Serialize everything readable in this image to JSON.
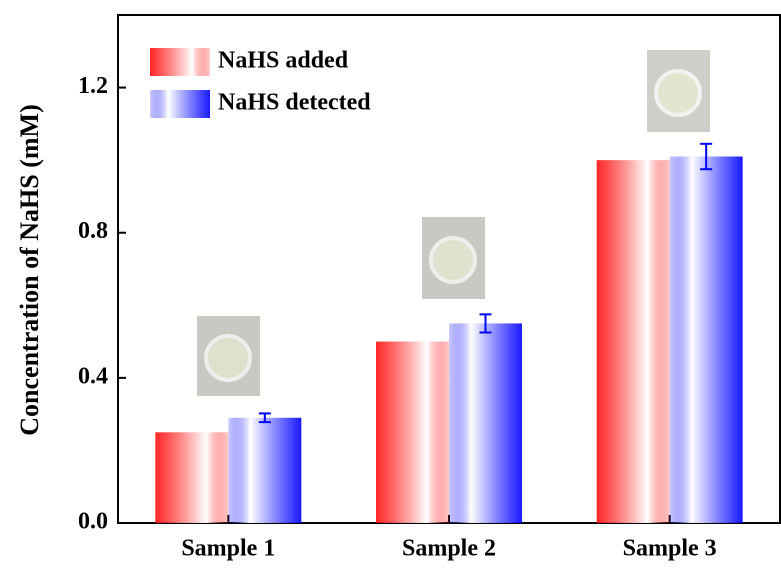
{
  "chart_data": {
    "type": "bar",
    "ylabel": "Concentration of NaHS (mM)",
    "categories": [
      "Sample 1",
      "Sample 2",
      "Sample 3"
    ],
    "series": [
      {
        "name": "NaHS added",
        "color": "#ff0000",
        "values": [
          0.25,
          0.5,
          1.0
        ]
      },
      {
        "name": "NaHS detected",
        "color": "#0000ff",
        "values": [
          0.29,
          0.55,
          1.01
        ],
        "errors": [
          0.012,
          0.025,
          0.035
        ]
      }
    ],
    "ylim": [
      0,
      1.4
    ],
    "yticks": [
      {
        "value": 0,
        "label": "0.0"
      },
      0.4,
      0.8,
      1.2
    ],
    "legend": "upper left"
  }
}
